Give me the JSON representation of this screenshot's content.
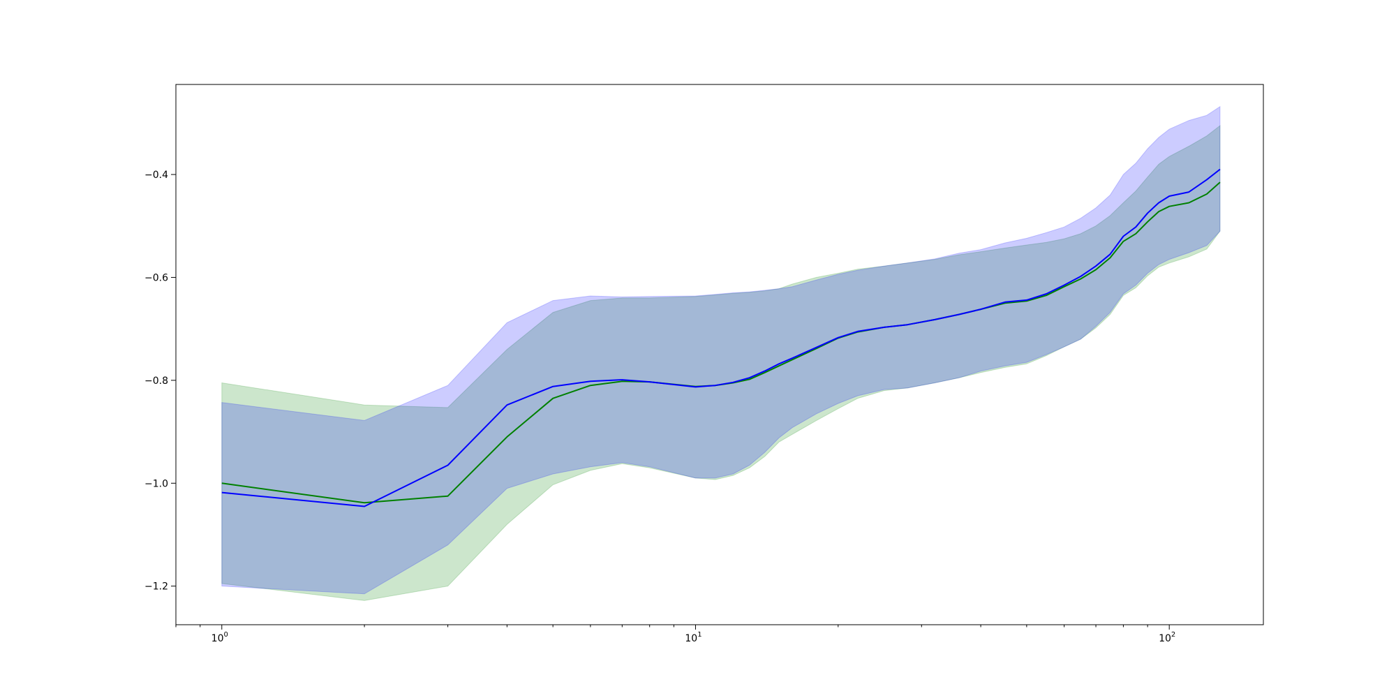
{
  "chart_data": {
    "type": "line",
    "title": "",
    "xlabel": "",
    "ylabel": "",
    "xscale": "log",
    "xlim": [
      0.8,
      158
    ],
    "ylim": [
      -1.275,
      -0.225
    ],
    "grid": false,
    "legend": "none",
    "x_ticks": [
      {
        "value": 1,
        "base": "10",
        "exp": "0"
      },
      {
        "value": 10,
        "base": "10",
        "exp": "1"
      },
      {
        "value": 100,
        "base": "10",
        "exp": "2"
      }
    ],
    "y_ticks": [
      {
        "value": -1.2,
        "label": "−1.2"
      },
      {
        "value": -1.0,
        "label": "−1.0"
      },
      {
        "value": -0.8,
        "label": "−0.8"
      },
      {
        "value": -0.6,
        "label": "−0.6"
      },
      {
        "value": -0.4,
        "label": "−0.4"
      }
    ],
    "series": [
      {
        "color": "#008000",
        "band_color": "#008000",
        "band_opacity": 0.2,
        "x": [
          1,
          2,
          3,
          4,
          5,
          6,
          7,
          8,
          10,
          11,
          12,
          13,
          14,
          15,
          16,
          18,
          20,
          22,
          25,
          28,
          32,
          36,
          40,
          45,
          50,
          55,
          60,
          65,
          70,
          75,
          80,
          85,
          90,
          95,
          100,
          110,
          120,
          128
        ],
        "mean": [
          -1.0,
          -1.038,
          -1.025,
          -0.91,
          -0.835,
          -0.81,
          -0.802,
          -0.803,
          -0.812,
          -0.81,
          -0.805,
          -0.798,
          -0.785,
          -0.772,
          -0.76,
          -0.738,
          -0.718,
          -0.706,
          -0.697,
          -0.692,
          -0.682,
          -0.672,
          -0.662,
          -0.65,
          -0.646,
          -0.635,
          -0.618,
          -0.603,
          -0.585,
          -0.562,
          -0.53,
          -0.515,
          -0.492,
          -0.472,
          -0.462,
          -0.455,
          -0.438,
          -0.415
        ],
        "lower": [
          -1.195,
          -1.228,
          -1.2,
          -1.08,
          -1.003,
          -0.975,
          -0.962,
          -0.97,
          -0.99,
          -0.993,
          -0.985,
          -0.97,
          -0.948,
          -0.92,
          -0.905,
          -0.878,
          -0.855,
          -0.835,
          -0.82,
          -0.815,
          -0.805,
          -0.795,
          -0.785,
          -0.775,
          -0.768,
          -0.752,
          -0.735,
          -0.72,
          -0.698,
          -0.672,
          -0.635,
          -0.62,
          -0.597,
          -0.58,
          -0.572,
          -0.56,
          -0.545,
          -0.51
        ],
        "upper": [
          -0.805,
          -0.848,
          -0.853,
          -0.74,
          -0.668,
          -0.645,
          -0.64,
          -0.64,
          -0.637,
          -0.634,
          -0.631,
          -0.629,
          -0.626,
          -0.622,
          -0.613,
          -0.6,
          -0.592,
          -0.584,
          -0.578,
          -0.572,
          -0.565,
          -0.556,
          -0.55,
          -0.543,
          -0.537,
          -0.532,
          -0.525,
          -0.515,
          -0.5,
          -0.48,
          -0.455,
          -0.432,
          -0.405,
          -0.38,
          -0.365,
          -0.345,
          -0.325,
          -0.305
        ]
      },
      {
        "color": "#0000ff",
        "band_color": "#0000ff",
        "band_opacity": 0.2,
        "x": [
          1,
          2,
          3,
          4,
          5,
          6,
          7,
          8,
          10,
          11,
          12,
          13,
          14,
          15,
          16,
          18,
          20,
          22,
          25,
          28,
          32,
          36,
          40,
          45,
          50,
          55,
          60,
          65,
          70,
          75,
          80,
          85,
          90,
          95,
          100,
          110,
          120,
          128
        ],
        "mean": [
          -1.018,
          -1.045,
          -0.965,
          -0.848,
          -0.812,
          -0.802,
          -0.799,
          -0.803,
          -0.813,
          -0.81,
          -0.804,
          -0.795,
          -0.782,
          -0.768,
          -0.757,
          -0.736,
          -0.717,
          -0.705,
          -0.697,
          -0.692,
          -0.682,
          -0.672,
          -0.662,
          -0.648,
          -0.644,
          -0.632,
          -0.615,
          -0.598,
          -0.578,
          -0.555,
          -0.52,
          -0.502,
          -0.475,
          -0.455,
          -0.442,
          -0.434,
          -0.41,
          -0.39
        ],
        "lower": [
          -1.2,
          -1.215,
          -1.12,
          -1.01,
          -0.982,
          -0.968,
          -0.96,
          -0.968,
          -0.99,
          -0.99,
          -0.982,
          -0.965,
          -0.94,
          -0.912,
          -0.892,
          -0.865,
          -0.845,
          -0.83,
          -0.818,
          -0.815,
          -0.805,
          -0.795,
          -0.782,
          -0.772,
          -0.765,
          -0.75,
          -0.735,
          -0.72,
          -0.695,
          -0.668,
          -0.632,
          -0.615,
          -0.592,
          -0.575,
          -0.565,
          -0.552,
          -0.538,
          -0.51
        ],
        "upper": [
          -0.843,
          -0.878,
          -0.81,
          -0.688,
          -0.645,
          -0.636,
          -0.638,
          -0.637,
          -0.636,
          -0.633,
          -0.63,
          -0.628,
          -0.625,
          -0.622,
          -0.618,
          -0.605,
          -0.594,
          -0.586,
          -0.578,
          -0.572,
          -0.564,
          -0.553,
          -0.546,
          -0.533,
          -0.524,
          -0.513,
          -0.502,
          -0.485,
          -0.465,
          -0.44,
          -0.4,
          -0.378,
          -0.35,
          -0.328,
          -0.312,
          -0.295,
          -0.285,
          -0.268
        ]
      }
    ]
  }
}
